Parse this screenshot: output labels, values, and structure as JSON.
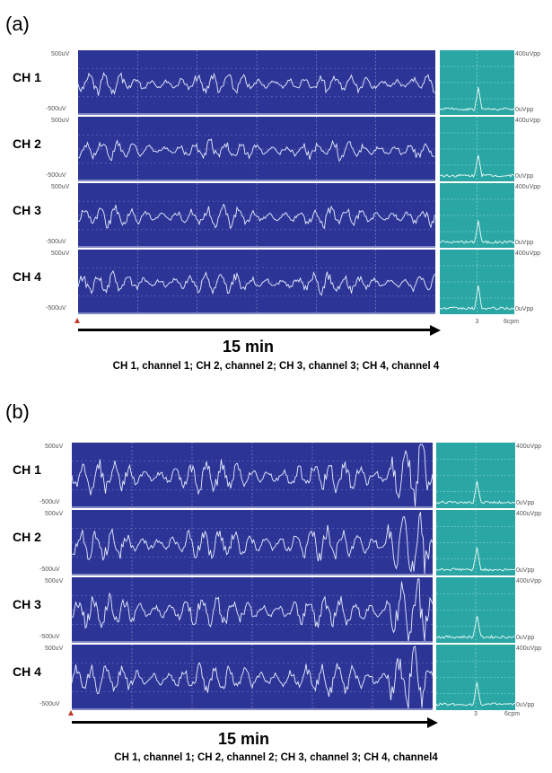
{
  "chart_data": [
    {
      "type": "line",
      "panel": "(a)",
      "channels": [
        {
          "name": "CH 1",
          "top_label": "500uV",
          "bottom_label": "-500uV",
          "spectrum_top_label": "400uVpp",
          "spectrum_bottom_label": "0uVpp"
        },
        {
          "name": "CH 2",
          "top_label": "500uV",
          "bottom_label": "-500uV",
          "spectrum_top_label": "400uVpp",
          "spectrum_bottom_label": "0uVpp"
        },
        {
          "name": "CH 3",
          "top_label": "500uV",
          "bottom_label": "-500uV",
          "spectrum_top_label": "400uVpp",
          "spectrum_bottom_label": "0uVpp"
        },
        {
          "name": "CH 4",
          "top_label": "500uV",
          "bottom_label": "-500uV",
          "spectrum_top_label": "400uVpp",
          "spectrum_bottom_label": "0uVpp"
        }
      ],
      "ylim": [
        -500,
        500
      ],
      "duration_label": "15 min",
      "spectrum_ticks": [
        "3",
        "6cpm"
      ],
      "caption": "CH 1, channel 1; CH 2, channel 2; CH 3, channel 3; CH 4, channel 4"
    },
    {
      "type": "line",
      "panel": "(b)",
      "channels": [
        {
          "name": "CH 1",
          "top_label": "500uV",
          "bottom_label": "-500uV",
          "spectrum_top_label": "400uVpp",
          "spectrum_bottom_label": "0uVpp"
        },
        {
          "name": "CH 2",
          "top_label": "500uV",
          "bottom_label": "-500uV",
          "spectrum_top_label": "400uVpp",
          "spectrum_bottom_label": "0uVpp"
        },
        {
          "name": "CH 3",
          "top_label": "500uV",
          "bottom_label": "-500uV",
          "spectrum_top_label": "400uVpp",
          "spectrum_bottom_label": "0uVpp"
        },
        {
          "name": "CH 4",
          "top_label": "500uV",
          "bottom_label": "-500uV",
          "spectrum_top_label": "400uVpp",
          "spectrum_bottom_label": "0uVpp"
        }
      ],
      "ylim": [
        -500,
        500
      ],
      "duration_label": "15 min",
      "spectrum_ticks": [
        "3",
        "6cpm"
      ],
      "caption": "CH 1, channel 1; CH 2, channel 2; CH 3, channel 3; CH 4, channel4"
    }
  ],
  "colors": {
    "trace_background": "#2c3596",
    "spectrum_background": "#2aa7a4",
    "trace_line": "#e8ecff",
    "start_marker": "#c0392b"
  }
}
